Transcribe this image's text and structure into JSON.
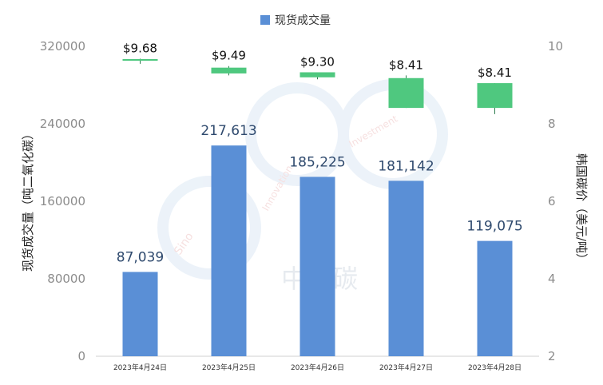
{
  "chart_data": {
    "type": "bar",
    "categories": [
      "2023年4月24日",
      "2023年4月25日",
      "2023年4月26日",
      "2023年4月27日",
      "2023年4月28日"
    ],
    "series": [
      {
        "name": "现货成交量",
        "type": "bar",
        "axis": "left",
        "values": [
          87039,
          217613,
          185225,
          181142,
          119075
        ],
        "labels": [
          "87,039",
          "217,613",
          "185,225",
          "181,142",
          "119,075"
        ],
        "color": "#5a8fd6"
      },
      {
        "type": "candlestick",
        "axis": "right",
        "open": [
          9.67,
          9.45,
          9.33,
          8.41,
          8.41
        ],
        "close": [
          9.65,
          9.3,
          9.2,
          9.18,
          9.05
        ],
        "high": [
          9.68,
          9.49,
          9.3,
          9.25,
          9.02
        ],
        "low": [
          9.55,
          9.25,
          9.15,
          8.41,
          8.25
        ],
        "labels": [
          "$9.68",
          "$9.49",
          "$9.30",
          "$8.41",
          "$8.41"
        ],
        "color": "#4fc87f"
      }
    ],
    "ylabel_left": "现货成交量（吨二氧化碳）",
    "ylabel_right": "韩国碳价（美元/吨）",
    "ylim_left": [
      0,
      320000
    ],
    "yticks_left": [
      "0",
      "80000",
      "160000",
      "240000",
      "320000"
    ],
    "ylim_right": [
      2,
      10
    ],
    "yticks_right": [
      "2",
      "4",
      "6",
      "8",
      "10"
    ],
    "legend_position": "top-center",
    "grid": false
  },
  "watermark": {
    "text_1": "Sino",
    "text_2": "Innovation",
    "text_3": "Investment",
    "text_4": "中创碳"
  }
}
